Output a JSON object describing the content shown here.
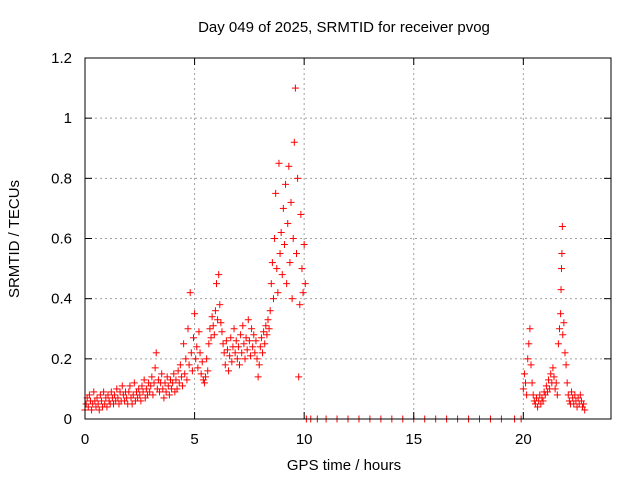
{
  "chart_data": {
    "type": "scatter",
    "title": "Day 049 of 2025, SRMTID for receiver pvog",
    "xlabel": "GPS time / hours",
    "ylabel": "SRMTID / TECUs",
    "xlim": [
      0,
      24
    ],
    "ylim": [
      0,
      1.2
    ],
    "xticks": [
      0,
      5,
      10,
      15,
      20
    ],
    "xtick_labels": [
      "0",
      "5",
      "10",
      "15",
      "20"
    ],
    "yticks": [
      0,
      0.2,
      0.4,
      0.6,
      0.8,
      1.0,
      1.2
    ],
    "ytick_labels": [
      "0",
      "0.2",
      "0.4",
      "0.6",
      "0.8",
      "1",
      "1.2"
    ],
    "grid": true,
    "marker": "plus",
    "color": "#ff0000",
    "series": [
      {
        "name": "SRMTID",
        "points": [
          [
            0.0,
            0.03
          ],
          [
            0.05,
            0.05
          ],
          [
            0.1,
            0.07
          ],
          [
            0.15,
            0.04
          ],
          [
            0.2,
            0.08
          ],
          [
            0.25,
            0.06
          ],
          [
            0.3,
            0.03
          ],
          [
            0.35,
            0.05
          ],
          [
            0.4,
            0.09
          ],
          [
            0.45,
            0.06
          ],
          [
            0.5,
            0.04
          ],
          [
            0.55,
            0.07
          ],
          [
            0.6,
            0.05
          ],
          [
            0.65,
            0.03
          ],
          [
            0.7,
            0.08
          ],
          [
            0.75,
            0.06
          ],
          [
            0.8,
            0.04
          ],
          [
            0.85,
            0.09
          ],
          [
            0.9,
            0.05
          ],
          [
            0.95,
            0.07
          ],
          [
            1.0,
            0.04
          ],
          [
            1.05,
            0.08
          ],
          [
            1.1,
            0.06
          ],
          [
            1.15,
            0.05
          ],
          [
            1.2,
            0.09
          ],
          [
            1.25,
            0.07
          ],
          [
            1.3,
            0.05
          ],
          [
            1.35,
            0.08
          ],
          [
            1.4,
            0.06
          ],
          [
            1.45,
            0.1
          ],
          [
            1.5,
            0.07
          ],
          [
            1.55,
            0.05
          ],
          [
            1.6,
            0.09
          ],
          [
            1.65,
            0.06
          ],
          [
            1.7,
            0.11
          ],
          [
            1.75,
            0.08
          ],
          [
            1.8,
            0.06
          ],
          [
            1.85,
            0.09
          ],
          [
            1.9,
            0.07
          ],
          [
            1.95,
            0.05
          ],
          [
            2.0,
            0.09
          ],
          [
            2.05,
            0.11
          ],
          [
            2.1,
            0.07
          ],
          [
            2.15,
            0.05
          ],
          [
            2.2,
            0.08
          ],
          [
            2.25,
            0.12
          ],
          [
            2.3,
            0.06
          ],
          [
            2.35,
            0.09
          ],
          [
            2.4,
            0.07
          ],
          [
            2.45,
            0.1
          ],
          [
            2.5,
            0.08
          ],
          [
            2.55,
            0.06
          ],
          [
            2.6,
            0.11
          ],
          [
            2.65,
            0.09
          ],
          [
            2.7,
            0.13
          ],
          [
            2.75,
            0.07
          ],
          [
            2.8,
            0.1
          ],
          [
            2.85,
            0.08
          ],
          [
            2.9,
            0.12
          ],
          [
            2.95,
            0.09
          ],
          [
            3.0,
            0.11
          ],
          [
            3.05,
            0.14
          ],
          [
            3.1,
            0.08
          ],
          [
            3.15,
            0.12
          ],
          [
            3.2,
            0.17
          ],
          [
            3.25,
            0.22
          ],
          [
            3.3,
            0.1
          ],
          [
            3.35,
            0.13
          ],
          [
            3.4,
            0.09
          ],
          [
            3.45,
            0.12
          ],
          [
            3.5,
            0.15
          ],
          [
            3.55,
            0.1
          ],
          [
            3.6,
            0.07
          ],
          [
            3.65,
            0.12
          ],
          [
            3.7,
            0.09
          ],
          [
            3.75,
            0.14
          ],
          [
            3.8,
            0.11
          ],
          [
            3.85,
            0.08
          ],
          [
            3.9,
            0.13
          ],
          [
            3.95,
            0.1
          ],
          [
            4.0,
            0.12
          ],
          [
            4.05,
            0.15
          ],
          [
            4.1,
            0.09
          ],
          [
            4.15,
            0.13
          ],
          [
            4.2,
            0.1
          ],
          [
            4.25,
            0.16
          ],
          [
            4.3,
            0.12
          ],
          [
            4.35,
            0.18
          ],
          [
            4.4,
            0.14
          ],
          [
            4.45,
            0.11
          ],
          [
            4.5,
            0.25
          ],
          [
            4.55,
            0.15
          ],
          [
            4.6,
            0.2
          ],
          [
            4.65,
            0.13
          ],
          [
            4.7,
            0.3
          ],
          [
            4.75,
            0.18
          ],
          [
            4.8,
            0.42
          ],
          [
            4.85,
            0.22
          ],
          [
            4.9,
            0.16
          ],
          [
            4.95,
            0.27
          ],
          [
            5.0,
            0.35
          ],
          [
            5.05,
            0.2
          ],
          [
            5.1,
            0.24
          ],
          [
            5.15,
            0.17
          ],
          [
            5.2,
            0.29
          ],
          [
            5.25,
            0.22
          ],
          [
            5.3,
            0.15
          ],
          [
            5.35,
            0.19
          ],
          [
            5.4,
            0.13
          ],
          [
            5.45,
            0.12
          ],
          [
            5.5,
            0.14
          ],
          [
            5.55,
            0.2
          ],
          [
            5.6,
            0.16
          ],
          [
            5.65,
            0.25
          ],
          [
            5.7,
            0.3
          ],
          [
            5.75,
            0.27
          ],
          [
            5.8,
            0.34
          ],
          [
            5.85,
            0.31
          ],
          [
            5.9,
            0.28
          ],
          [
            5.95,
            0.36
          ],
          [
            6.0,
            0.45
          ],
          [
            6.05,
            0.33
          ],
          [
            6.1,
            0.48
          ],
          [
            6.15,
            0.38
          ],
          [
            6.2,
            0.32
          ],
          [
            6.25,
            0.29
          ],
          [
            6.3,
            0.25
          ],
          [
            6.35,
            0.22
          ],
          [
            6.4,
            0.18
          ],
          [
            6.45,
            0.26
          ],
          [
            6.5,
            0.23
          ],
          [
            6.55,
            0.16
          ],
          [
            6.6,
            0.21
          ],
          [
            6.65,
            0.27
          ],
          [
            6.7,
            0.19
          ],
          [
            6.75,
            0.24
          ],
          [
            6.8,
            0.3
          ],
          [
            6.85,
            0.22
          ],
          [
            6.9,
            0.26
          ],
          [
            6.95,
            0.2
          ],
          [
            7.0,
            0.24
          ],
          [
            7.05,
            0.18
          ],
          [
            7.1,
            0.28
          ],
          [
            7.15,
            0.22
          ],
          [
            7.2,
            0.31
          ],
          [
            7.25,
            0.25
          ],
          [
            7.3,
            0.2
          ],
          [
            7.35,
            0.27
          ],
          [
            7.4,
            0.23
          ],
          [
            7.45,
            0.33
          ],
          [
            7.5,
            0.26
          ],
          [
            7.55,
            0.21
          ],
          [
            7.6,
            0.3
          ],
          [
            7.65,
            0.24
          ],
          [
            7.7,
            0.28
          ],
          [
            7.75,
            0.22
          ],
          [
            7.8,
            0.26
          ],
          [
            7.85,
            0.2
          ],
          [
            7.9,
            0.14
          ],
          [
            7.95,
            0.18
          ],
          [
            8.0,
            0.24
          ],
          [
            8.05,
            0.27
          ],
          [
            8.1,
            0.22
          ],
          [
            8.15,
            0.29
          ],
          [
            8.2,
            0.25
          ],
          [
            8.25,
            0.31
          ],
          [
            8.3,
            0.28
          ],
          [
            8.35,
            0.33
          ],
          [
            8.4,
            0.3
          ],
          [
            8.45,
            0.36
          ],
          [
            8.5,
            0.45
          ],
          [
            8.55,
            0.52
          ],
          [
            8.6,
            0.4
          ],
          [
            8.65,
            0.6
          ],
          [
            8.7,
            0.75
          ],
          [
            8.75,
            0.5
          ],
          [
            8.8,
            0.42
          ],
          [
            8.85,
            0.85
          ],
          [
            8.9,
            0.55
          ],
          [
            8.95,
            0.62
          ],
          [
            9.0,
            0.48
          ],
          [
            9.05,
            0.7
          ],
          [
            9.1,
            0.58
          ],
          [
            9.15,
            0.78
          ],
          [
            9.2,
            0.45
          ],
          [
            9.25,
            0.65
          ],
          [
            9.3,
            0.84
          ],
          [
            9.35,
            0.52
          ],
          [
            9.4,
            0.72
          ],
          [
            9.45,
            0.4
          ],
          [
            9.5,
            0.6
          ],
          [
            9.55,
            0.92
          ],
          [
            9.6,
            1.1
          ],
          [
            9.65,
            0.55
          ],
          [
            9.7,
            0.8
          ],
          [
            9.75,
            0.14
          ],
          [
            9.8,
            0.38
          ],
          [
            9.85,
            0.68
          ],
          [
            9.9,
            0.5
          ],
          [
            9.95,
            0.42
          ],
          [
            10.0,
            0.58
          ],
          [
            10.05,
            0.45
          ],
          [
            10.1,
            0.0
          ],
          [
            10.3,
            0.0
          ],
          [
            10.6,
            0.0
          ],
          [
            11.0,
            0.0
          ],
          [
            11.5,
            0.0
          ],
          [
            12.0,
            0.0
          ],
          [
            12.5,
            0.0
          ],
          [
            13.0,
            0.0
          ],
          [
            13.5,
            0.0
          ],
          [
            14.0,
            0.0
          ],
          [
            14.5,
            0.0
          ],
          [
            15.0,
            0.0
          ],
          [
            15.5,
            0.0
          ],
          [
            16.0,
            0.0
          ],
          [
            16.5,
            0.0
          ],
          [
            17.0,
            0.0
          ],
          [
            17.5,
            0.0
          ],
          [
            18.0,
            0.0
          ],
          [
            18.5,
            0.0
          ],
          [
            19.0,
            0.0
          ],
          [
            19.6,
            0.0
          ],
          [
            19.9,
            0.0
          ],
          [
            20.0,
            0.1
          ],
          [
            20.05,
            0.15
          ],
          [
            20.1,
            0.12
          ],
          [
            20.15,
            0.08
          ],
          [
            20.2,
            0.2
          ],
          [
            20.25,
            0.25
          ],
          [
            20.3,
            0.3
          ],
          [
            20.35,
            0.18
          ],
          [
            20.4,
            0.12
          ],
          [
            20.45,
            0.08
          ],
          [
            20.5,
            0.06
          ],
          [
            20.55,
            0.05
          ],
          [
            20.6,
            0.07
          ],
          [
            20.65,
            0.04
          ],
          [
            20.7,
            0.06
          ],
          [
            20.75,
            0.08
          ],
          [
            20.8,
            0.05
          ],
          [
            20.85,
            0.07
          ],
          [
            20.9,
            0.06
          ],
          [
            20.95,
            0.09
          ],
          [
            21.0,
            0.08
          ],
          [
            21.05,
            0.11
          ],
          [
            21.1,
            0.09
          ],
          [
            21.15,
            0.13
          ],
          [
            21.2,
            0.1
          ],
          [
            21.25,
            0.15
          ],
          [
            21.3,
            0.12
          ],
          [
            21.35,
            0.17
          ],
          [
            21.4,
            0.14
          ],
          [
            21.45,
            0.1
          ],
          [
            21.5,
            0.12
          ],
          [
            21.55,
            0.08
          ],
          [
            21.6,
            0.25
          ],
          [
            21.65,
            0.3
          ],
          [
            21.7,
            0.35
          ],
          [
            21.72,
            0.43
          ],
          [
            21.74,
            0.5
          ],
          [
            21.76,
            0.55
          ],
          [
            21.78,
            0.64
          ],
          [
            21.8,
            0.28
          ],
          [
            21.85,
            0.32
          ],
          [
            21.9,
            0.22
          ],
          [
            21.95,
            0.18
          ],
          [
            22.0,
            0.12
          ],
          [
            22.05,
            0.08
          ],
          [
            22.1,
            0.06
          ],
          [
            22.15,
            0.05
          ],
          [
            22.2,
            0.09
          ],
          [
            22.25,
            0.07
          ],
          [
            22.3,
            0.05
          ],
          [
            22.35,
            0.08
          ],
          [
            22.4,
            0.06
          ],
          [
            22.45,
            0.04
          ],
          [
            22.5,
            0.07
          ],
          [
            22.55,
            0.05
          ],
          [
            22.6,
            0.08
          ],
          [
            22.65,
            0.06
          ],
          [
            22.7,
            0.04
          ],
          [
            22.75,
            0.05
          ],
          [
            22.8,
            0.03
          ]
        ]
      }
    ]
  }
}
